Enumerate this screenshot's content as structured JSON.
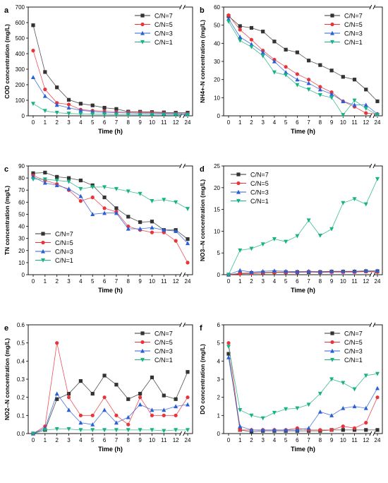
{
  "chart_data": [
    {
      "type": "line",
      "panel_label": "a",
      "xlabel": "Time (h)",
      "ylabel": "COD concentration (mg/L)",
      "x_ticks": [
        "0",
        "1",
        "2",
        "3",
        "4",
        "5",
        "6",
        "7",
        "8",
        "9",
        "10",
        "11",
        "12",
        "24"
      ],
      "ylim": [
        0,
        700
      ],
      "y_ticks": [
        0,
        100,
        200,
        300,
        400,
        500,
        600,
        700
      ],
      "legend_position": "top-right",
      "series": [
        {
          "name": "C/N=7",
          "color": "#333333",
          "marker": "square",
          "values": [
            583,
            282,
            183,
            103,
            78,
            67,
            52,
            44,
            27,
            26,
            24,
            22,
            20,
            20
          ]
        },
        {
          "name": "C/N=5",
          "color": "#e8343b",
          "marker": "circle",
          "values": [
            420,
            170,
            83,
            73,
            40,
            33,
            30,
            25,
            23,
            22,
            20,
            17,
            15,
            14
          ]
        },
        {
          "name": "C/N=3",
          "color": "#2c5ed9",
          "marker": "triangle-up",
          "values": [
            248,
            127,
            70,
            52,
            35,
            28,
            22,
            20,
            18,
            16,
            15,
            14,
            13,
            12
          ]
        },
        {
          "name": "C/N=1",
          "color": "#19b285",
          "marker": "triangle-down",
          "values": [
            78,
            32,
            20,
            15,
            12,
            10,
            10,
            8,
            8,
            7,
            7,
            7,
            7,
            6
          ]
        }
      ]
    },
    {
      "type": "line",
      "panel_label": "b",
      "xlabel": "Time (h)",
      "ylabel": "NH4+-N concentration (mg/L)",
      "x_ticks": [
        "0",
        "1",
        "2",
        "3",
        "4",
        "5",
        "6",
        "7",
        "8",
        "9",
        "10",
        "11",
        "12",
        "24"
      ],
      "ylim": [
        0,
        60
      ],
      "y_ticks": [
        0,
        10,
        20,
        30,
        40,
        50,
        60
      ],
      "legend_position": "top-right",
      "series": [
        {
          "name": "C/N=7",
          "color": "#333333",
          "marker": "square",
          "values": [
            55,
            49.5,
            48.5,
            46.5,
            41,
            36.5,
            35,
            30.5,
            28,
            25,
            21.5,
            20,
            14.5,
            8
          ]
        },
        {
          "name": "C/N=5",
          "color": "#e8343b",
          "marker": "circle",
          "values": [
            55.5,
            47.5,
            42,
            36,
            31,
            27,
            23,
            20,
            16,
            13,
            8,
            5,
            1.5,
            1
          ]
        },
        {
          "name": "C/N=3",
          "color": "#2c5ed9",
          "marker": "triangle-up",
          "values": [
            53.5,
            43.5,
            39.5,
            35,
            30,
            24,
            20,
            18,
            14.5,
            12,
            8,
            6,
            6,
            1
          ]
        },
        {
          "name": "C/N=1",
          "color": "#19b285",
          "marker": "triangle-down",
          "values": [
            52,
            41.5,
            38,
            33,
            24,
            22.5,
            17,
            14.5,
            11.5,
            10,
            0.5,
            8.5,
            4,
            0.5
          ]
        }
      ]
    },
    {
      "type": "line",
      "panel_label": "c",
      "xlabel": "Time (h)",
      "ylabel": "TN concentration (mg/L)",
      "x_ticks": [
        "0",
        "1",
        "2",
        "3",
        "4",
        "5",
        "6",
        "7",
        "8",
        "9",
        "10",
        "11",
        "12",
        "24"
      ],
      "ylim": [
        0,
        90
      ],
      "y_ticks": [
        0,
        10,
        20,
        30,
        40,
        50,
        60,
        70,
        80,
        90
      ],
      "legend_position": "bottom-left",
      "series": [
        {
          "name": "C/N=7",
          "color": "#333333",
          "marker": "square",
          "values": [
            84,
            84.5,
            81,
            80,
            78,
            74,
            64,
            55,
            48,
            43.5,
            44,
            37,
            37,
            29.5
          ]
        },
        {
          "name": "C/N=5",
          "color": "#e8343b",
          "marker": "circle",
          "values": [
            82,
            78,
            75,
            70,
            61,
            64,
            55,
            52,
            40,
            37,
            35,
            35,
            28,
            10
          ]
        },
        {
          "name": "C/N=3",
          "color": "#2c5ed9",
          "marker": "triangle-up",
          "values": [
            81,
            76,
            74,
            71,
            65,
            50,
            51,
            51,
            38,
            38,
            39,
            37,
            36,
            26
          ]
        },
        {
          "name": "C/N=1",
          "color": "#19b285",
          "marker": "triangle-down",
          "values": [
            79,
            79,
            78,
            77,
            71,
            72.5,
            72.5,
            71,
            69,
            67,
            61,
            62,
            60,
            54.5
          ]
        }
      ]
    },
    {
      "type": "line",
      "panel_label": "d",
      "xlabel": "Time (h)",
      "ylabel": "NO3--N concentration (mg/L)",
      "x_ticks": [
        "0",
        "1",
        "2",
        "3",
        "4",
        "5",
        "6",
        "7",
        "8",
        "9",
        "10",
        "11",
        "12",
        "24"
      ],
      "ylim": [
        0,
        25
      ],
      "y_ticks": [
        0,
        5,
        10,
        15,
        20,
        25
      ],
      "legend_position": "top-left",
      "series": [
        {
          "name": "C/N=7",
          "color": "#333333",
          "marker": "square",
          "values": [
            0,
            0.3,
            0.4,
            0.5,
            0.6,
            0.6,
            0.6,
            0.6,
            0.6,
            0.7,
            0.7,
            0.7,
            0.8,
            0.8
          ]
        },
        {
          "name": "C/N=5",
          "color": "#e8343b",
          "marker": "circle",
          "values": [
            0,
            0.2,
            0.3,
            0.4,
            0.5,
            0.5,
            0.5,
            0.7,
            0.5,
            0.6,
            0.6,
            0.6,
            0.7,
            0.6
          ]
        },
        {
          "name": "C/N=3",
          "color": "#2c5ed9",
          "marker": "triangle-up",
          "values": [
            0,
            1,
            0.6,
            0.8,
            0.9,
            0.8,
            0.7,
            0.8,
            0.7,
            0.8,
            0.8,
            0.8,
            0.9,
            0.9
          ]
        },
        {
          "name": "C/N=1",
          "color": "#19b285",
          "marker": "triangle-down",
          "values": [
            0,
            5.6,
            6,
            7,
            8.2,
            7.6,
            8.9,
            12.5,
            9,
            10.5,
            16.5,
            17.4,
            16.2,
            22
          ]
        }
      ]
    },
    {
      "type": "line",
      "panel_label": "e",
      "xlabel": "Time (h)",
      "ylabel": "NO2--N concentration (mg/L)",
      "x_ticks": [
        "0",
        "1",
        "2",
        "3",
        "4",
        "5",
        "6",
        "7",
        "8",
        "9",
        "10",
        "11",
        "12",
        "24"
      ],
      "ylim": [
        0,
        0.6
      ],
      "y_ticks": [
        0,
        0.1,
        0.2,
        0.3,
        0.4,
        0.5,
        0.6
      ],
      "y_tick_labels": [
        "0.0",
        "0.1",
        "0.2",
        "0.3",
        "0.4",
        "0.5",
        "0.6"
      ],
      "legend_position": "top-right",
      "series": [
        {
          "name": "C/N=7",
          "color": "#333333",
          "marker": "square",
          "values": [
            0,
            0.02,
            0.19,
            0.22,
            0.29,
            0.22,
            0.32,
            0.27,
            0.19,
            0.22,
            0.31,
            0.21,
            0.19,
            0.34
          ]
        },
        {
          "name": "C/N=5",
          "color": "#e8343b",
          "marker": "circle",
          "values": [
            0,
            0.04,
            0.5,
            0.2,
            0.1,
            0.1,
            0.2,
            0.1,
            0.05,
            0.2,
            0.1,
            0.1,
            0.1,
            0.2
          ]
        },
        {
          "name": "C/N=3",
          "color": "#2c5ed9",
          "marker": "triangle-up",
          "values": [
            0,
            0.03,
            0.22,
            0.13,
            0.06,
            0.05,
            0.13,
            0.06,
            0.09,
            0.16,
            0.13,
            0.13,
            0.15,
            0.16
          ]
        },
        {
          "name": "C/N=1",
          "color": "#19b285",
          "marker": "triangle-down",
          "values": [
            0,
            0.02,
            0.025,
            0.025,
            0.02,
            0.02,
            0.02,
            0.02,
            0.02,
            0.02,
            0.02,
            0.015,
            0.02,
            0.02
          ]
        }
      ]
    },
    {
      "type": "line",
      "panel_label": "f",
      "xlabel": "Time (h)",
      "ylabel": "DO concentration (mg/L)",
      "x_ticks": [
        "0",
        "1",
        "2",
        "3",
        "4",
        "5",
        "6",
        "7",
        "8",
        "9",
        "10",
        "11",
        "12",
        "24"
      ],
      "ylim": [
        0,
        6
      ],
      "y_ticks": [
        0,
        1,
        2,
        3,
        4,
        5,
        6
      ],
      "legend_position": "top-right",
      "series": [
        {
          "name": "C/N=7",
          "color": "#333333",
          "marker": "square",
          "values": [
            4.4,
            0.2,
            0.1,
            0.15,
            0.15,
            0.15,
            0.15,
            0.15,
            0.15,
            0.2,
            0.2,
            0.2,
            0.2,
            0.2
          ]
        },
        {
          "name": "C/N=5",
          "color": "#e8343b",
          "marker": "circle",
          "values": [
            5,
            0.2,
            0.2,
            0.2,
            0.2,
            0.2,
            0.3,
            0.2,
            0.2,
            0.2,
            0.4,
            0.3,
            0.6,
            2
          ]
        },
        {
          "name": "C/N=3",
          "color": "#2c5ed9",
          "marker": "triangle-up",
          "values": [
            4.2,
            0.4,
            0.2,
            0.2,
            0.2,
            0.2,
            0.2,
            0.3,
            1.2,
            1,
            1.4,
            1.5,
            1.4,
            2.5
          ]
        },
        {
          "name": "C/N=1",
          "color": "#19b285",
          "marker": "triangle-down",
          "values": [
            4.8,
            1.3,
            1,
            0.85,
            1.15,
            1.35,
            1.4,
            1.6,
            2.2,
            3,
            2.8,
            2.45,
            3.2,
            3.3
          ]
        }
      ]
    }
  ]
}
